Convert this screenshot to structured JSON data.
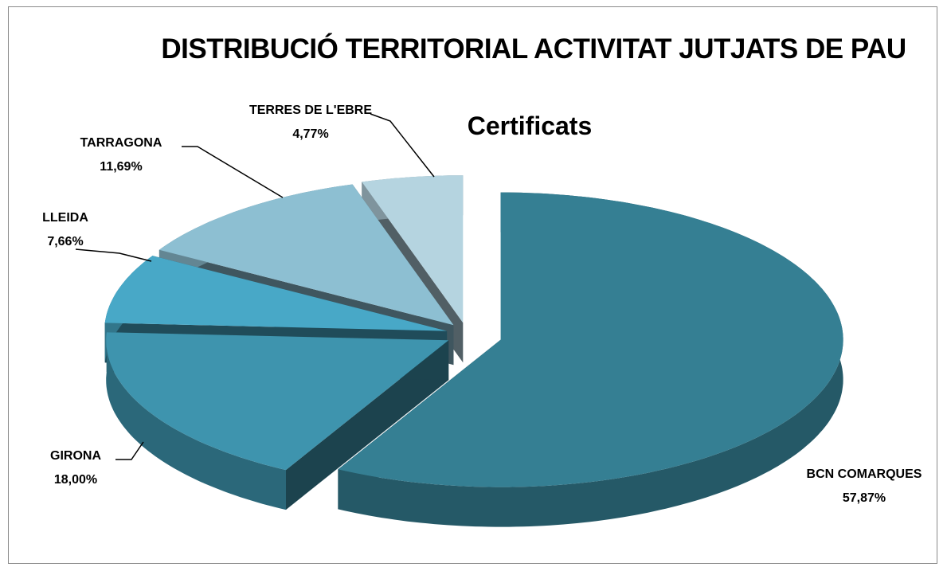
{
  "chart_data": {
    "type": "pie3d",
    "title": "DISTRIBUCIÓ  TERRITORIAL ACTIVITAT JUTJATS DE PAU",
    "subtitle": "Certificats",
    "categories": [
      "BCN COMARQUES",
      "GIRONA",
      "LLEIDA",
      "TARRAGONA",
      "TERRES DE L'EBRE"
    ],
    "values": [
      57.87,
      18.0,
      7.66,
      11.69,
      4.77
    ],
    "value_labels": [
      "57,87%",
      "18,00%",
      "7,66%",
      "11,69%",
      "4,77%"
    ],
    "colors": [
      "#357f93",
      "#3e94ae",
      "#48a8c7",
      "#8dbfd2",
      "#b5d4e0"
    ]
  }
}
